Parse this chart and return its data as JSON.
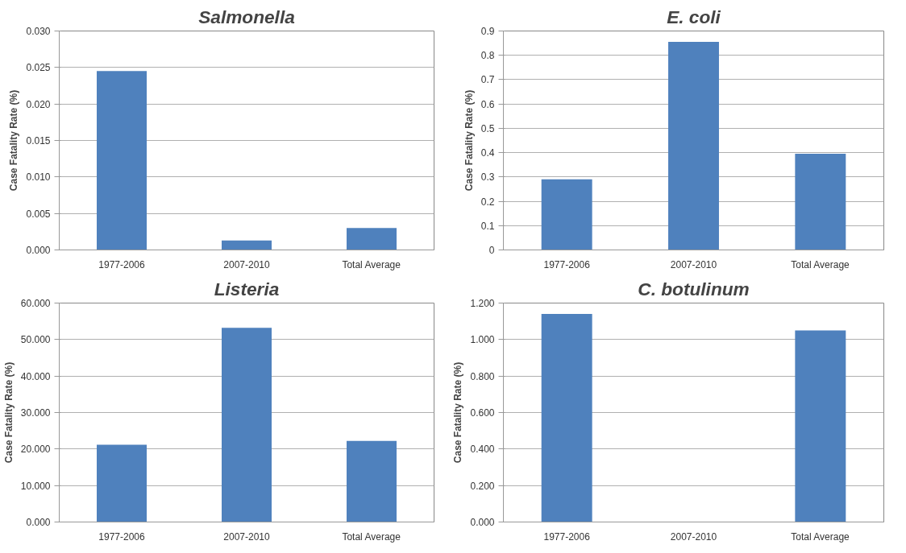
{
  "chart_data": [
    {
      "type": "bar",
      "title": "Salmonella",
      "ylabel": "Case Fatality Rate (%)",
      "categories": [
        "1977-2006",
        "2007-2010",
        "Total Average"
      ],
      "values": [
        0.0245,
        0.0013,
        0.003
      ],
      "color": "#4f81bd",
      "ylim": [
        0,
        0.03
      ],
      "yticks": [
        {
          "value": 0,
          "label": "0.000"
        },
        {
          "value": 0.005,
          "label": "0.005"
        },
        {
          "value": 0.01,
          "label": "0.010"
        },
        {
          "value": 0.015,
          "label": "0.015"
        },
        {
          "value": 0.02,
          "label": "0.020"
        },
        {
          "value": 0.025,
          "label": "0.025"
        },
        {
          "value": 0.03,
          "label": "0.030"
        }
      ],
      "grid": "y"
    },
    {
      "type": "bar",
      "title": "E. coli",
      "ylabel": "Case Fatality Rate (%)",
      "categories": [
        "1977-2006",
        "2007-2010",
        "Total Average"
      ],
      "values": [
        0.29,
        0.855,
        0.395
      ],
      "color": "#4f81bd",
      "ylim": [
        0,
        0.9
      ],
      "yticks": [
        0,
        0.1,
        0.2,
        0.3,
        0.4,
        0.5,
        0.6,
        0.7,
        0.8,
        0.9
      ],
      "grid": "y"
    },
    {
      "type": "bar",
      "title": "Listeria",
      "ylabel": "Case Fatality Rate (%)",
      "categories": [
        "1977-2006",
        "2007-2010",
        "Total Average"
      ],
      "values": [
        21.2,
        53.2,
        22.2
      ],
      "color": "#4f81bd",
      "ylim": [
        0,
        60
      ],
      "yticks": [
        {
          "value": 0,
          "label": "0.000"
        },
        {
          "value": 10,
          "label": "10.000"
        },
        {
          "value": 20,
          "label": "20.000"
        },
        {
          "value": 30,
          "label": "30.000"
        },
        {
          "value": 40,
          "label": "40.000"
        },
        {
          "value": 50,
          "label": "50.000"
        },
        {
          "value": 60,
          "label": "60.000"
        }
      ],
      "grid": "y"
    },
    {
      "type": "bar",
      "title": "C. botulinum",
      "ylabel": "Case Fatality Rate (%)",
      "categories": [
        "1977-2006",
        "2007-2010",
        "Total Average"
      ],
      "values": [
        1.14,
        0,
        1.05
      ],
      "color": "#4f81bd",
      "ylim": [
        0,
        1.2
      ],
      "yticks": [
        {
          "value": 0,
          "label": "0.000"
        },
        {
          "value": 0.2,
          "label": "0.200"
        },
        {
          "value": 0.4,
          "label": "0.400"
        },
        {
          "value": 0.6,
          "label": "0.600"
        },
        {
          "value": 0.8,
          "label": "0.800"
        },
        {
          "value": 1.0,
          "label": "1.000"
        },
        {
          "value": 1.2,
          "label": "1.200"
        }
      ],
      "grid": "y"
    }
  ]
}
